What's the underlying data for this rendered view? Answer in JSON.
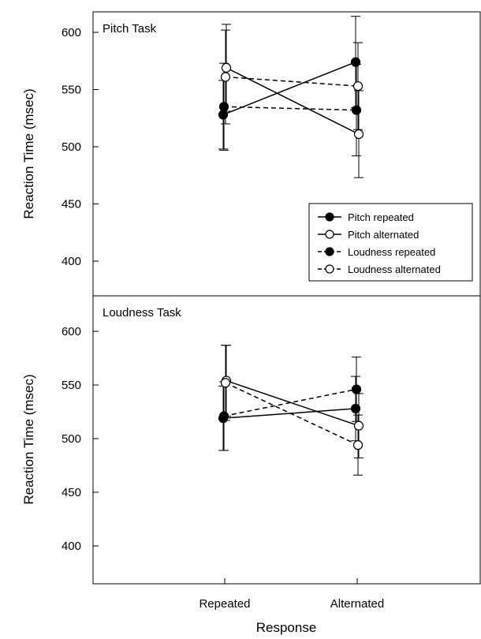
{
  "chart_data": [
    {
      "type": "line",
      "title": "Pitch Task",
      "xlabel": "",
      "ylabel": "Reaction Time (msec)",
      "categories": [
        "Repeated",
        "Alternated"
      ],
      "ylim": [
        370,
        620
      ],
      "yticks": [
        400,
        450,
        500,
        550,
        600
      ],
      "grid": false,
      "legend_position": "bottom-right",
      "series": [
        {
          "name": "Pitch repeated",
          "values": [
            528,
            574
          ],
          "errors": [
            30,
            40
          ],
          "marker": "filled",
          "line": "solid"
        },
        {
          "name": "Pitch alternated",
          "values": [
            569,
            511
          ],
          "errors": [
            38,
            38
          ],
          "marker": "open",
          "line": "solid"
        },
        {
          "name": "Loudness repeated",
          "values": [
            535,
            532
          ],
          "errors": [
            38,
            40
          ],
          "marker": "filled",
          "line": "dashed"
        },
        {
          "name": "Loudness alternated",
          "values": [
            561,
            553
          ],
          "errors": [
            41,
            38
          ],
          "marker": "open",
          "line": "dashed"
        }
      ]
    },
    {
      "type": "line",
      "title": "Loudness Task",
      "xlabel": "Response",
      "ylabel": "Reaction Time (msec)",
      "categories": [
        "Repeated",
        "Alternated"
      ],
      "ylim": [
        370,
        620
      ],
      "yticks": [
        400,
        450,
        500,
        550,
        600
      ],
      "grid": false,
      "legend_position": "",
      "series": [
        {
          "name": "Pitch repeated",
          "values": [
            519,
            528
          ],
          "errors": [
            30,
            30
          ],
          "marker": "filled",
          "line": "solid"
        },
        {
          "name": "Pitch alternated",
          "values": [
            554,
            512
          ],
          "errors": [
            33,
            30
          ],
          "marker": "open",
          "line": "solid"
        },
        {
          "name": "Loudness repeated",
          "values": [
            521,
            546
          ],
          "errors": [
            32,
            30
          ],
          "marker": "filled",
          "line": "dashed"
        },
        {
          "name": "Loudness alternated",
          "values": [
            552,
            494
          ],
          "errors": [
            35,
            28
          ],
          "marker": "open",
          "line": "dashed"
        }
      ]
    }
  ]
}
